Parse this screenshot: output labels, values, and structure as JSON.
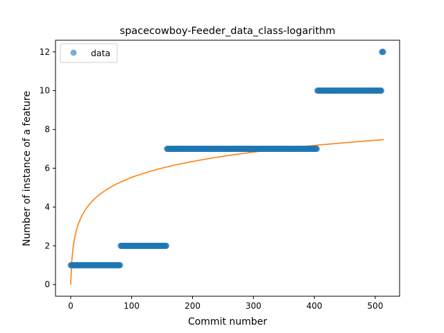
{
  "chart_data": {
    "type": "scatter",
    "title": "spacecowboy-Feeder_data_class-logarithm",
    "xlabel": "Commit number",
    "ylabel": "Number of instance of a feature",
    "xlim": [
      -25,
      540
    ],
    "ylim": [
      -0.6,
      12.6
    ],
    "xticks": [
      0,
      100,
      200,
      300,
      400,
      500
    ],
    "yticks": [
      0,
      2,
      4,
      6,
      8,
      10,
      12
    ],
    "legend": {
      "placement": "upper-left",
      "entries": [
        "data"
      ]
    },
    "colors": {
      "data": "#1f77b4",
      "fit": "#ff7f0e"
    },
    "series": [
      {
        "name": "data",
        "kind": "scatter",
        "segments": [
          {
            "x_start": 0,
            "x_end": 82,
            "y": 1
          },
          {
            "x_start": 82,
            "x_end": 158,
            "y": 2
          },
          {
            "x_start": 158,
            "x_end": 405,
            "y": 7
          },
          {
            "x_start": 405,
            "x_end": 511,
            "y": 10
          },
          {
            "x_start": 511,
            "x_end": 514,
            "y": 12
          }
        ]
      },
      {
        "kind": "line",
        "model": "logarithmic",
        "a": 1.197,
        "b": 0,
        "x_range": [
          0,
          514
        ]
      }
    ]
  }
}
